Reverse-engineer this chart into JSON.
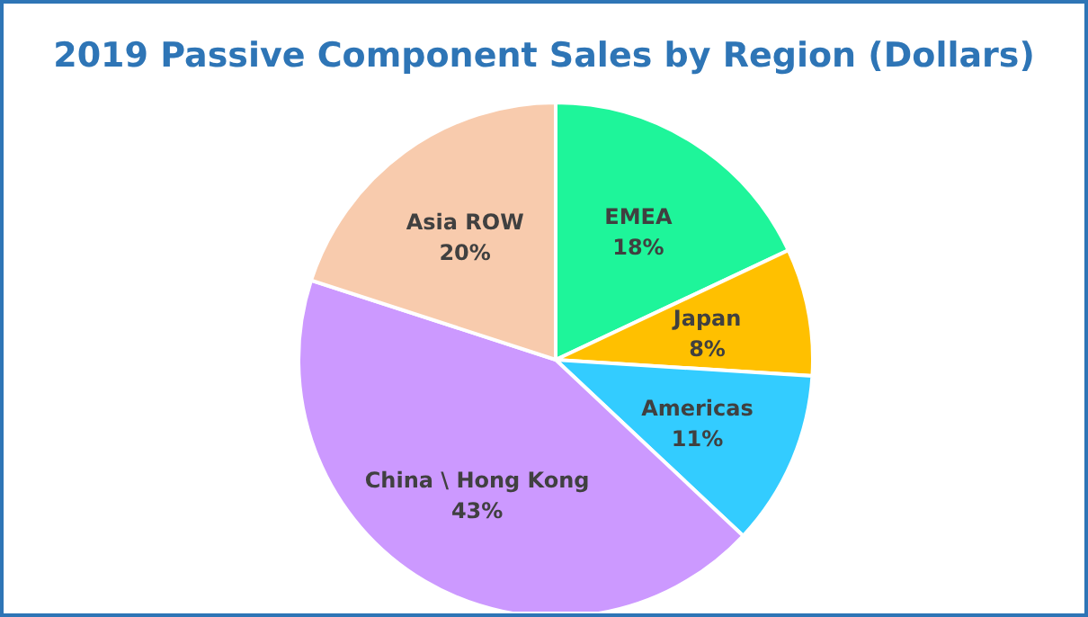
{
  "chart_data": {
    "type": "pie",
    "title": "2019 Passive Component Sales by Region (Dollars)",
    "categories": [
      "EMEA",
      "Japan",
      "Americas",
      "China \\ Hong Kong",
      "Asia ROW"
    ],
    "values": [
      18,
      8,
      11,
      43,
      20
    ],
    "value_labels": [
      "18%",
      "8%",
      "11%",
      "43%",
      "20%"
    ],
    "colors": [
      "#1ef59a",
      "#ffc000",
      "#33ccff",
      "#cc99ff",
      "#f8cbad"
    ]
  }
}
